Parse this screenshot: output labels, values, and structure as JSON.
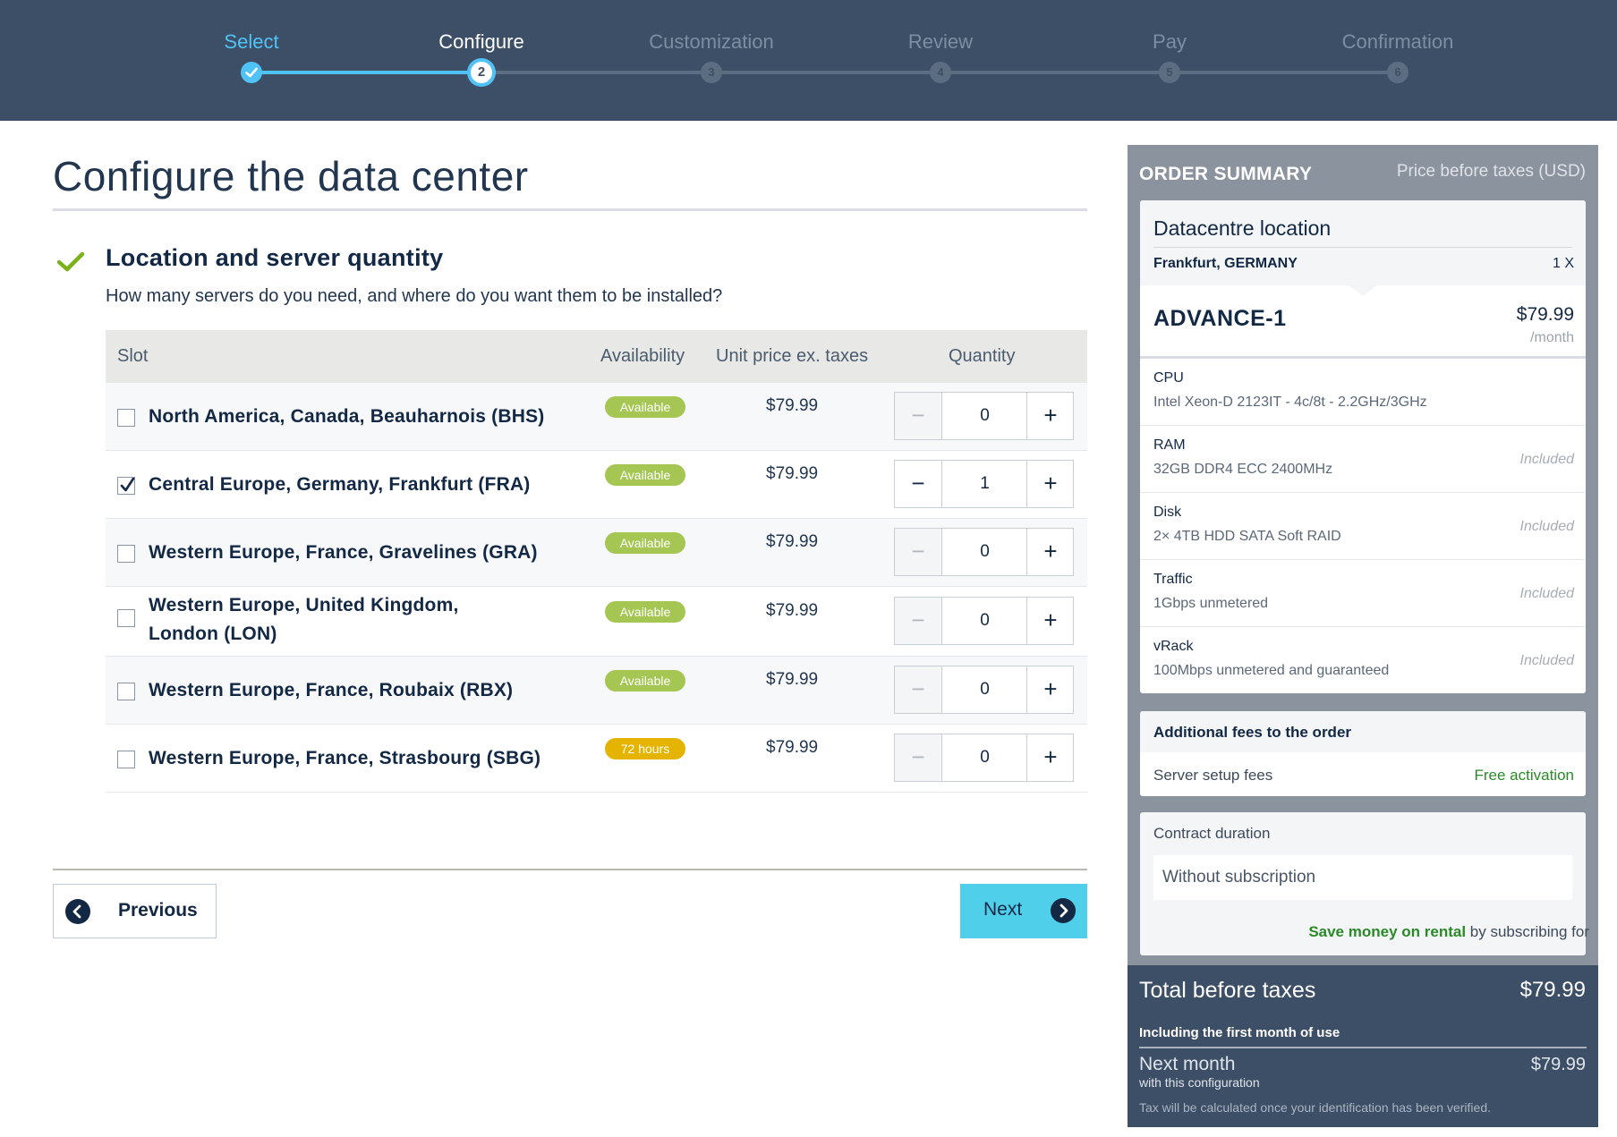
{
  "stepper": {
    "steps": [
      {
        "label": "Select",
        "number": "",
        "state": "done"
      },
      {
        "label": "Configure",
        "number": "2",
        "state": "active"
      },
      {
        "label": "Customization",
        "number": "3",
        "state": "pending"
      },
      {
        "label": "Review",
        "number": "4",
        "state": "pending"
      },
      {
        "label": "Pay",
        "number": "5",
        "state": "pending"
      },
      {
        "label": "Confirmation",
        "number": "6",
        "state": "pending"
      }
    ]
  },
  "main": {
    "title": "Configure the data center",
    "section_title": "Location and server quantity",
    "section_subtitle": "How many servers do you need, and where do you want them to be installed?",
    "table": {
      "headers": {
        "slot": "Slot",
        "availability": "Availability",
        "unit_price": "Unit price ex. taxes",
        "quantity": "Quantity"
      },
      "rows": [
        {
          "name": "North America, Canada, Beauharnois (BHS)",
          "checked": false,
          "availability": "Available",
          "price": "$79.99",
          "qty": "0"
        },
        {
          "name": "Central Europe, Germany, Frankfurt (FRA)",
          "checked": true,
          "availability": "Available",
          "price": "$79.99",
          "qty": "1"
        },
        {
          "name": "Western Europe, France, Gravelines (GRA)",
          "checked": false,
          "availability": "Available",
          "price": "$79.99",
          "qty": "0"
        },
        {
          "name": "Western Europe, United Kingdom, London (LON)",
          "checked": false,
          "availability": "Available",
          "price": "$79.99",
          "qty": "0"
        },
        {
          "name": "Western Europe, France, Roubaix (RBX)",
          "checked": false,
          "availability": "Available",
          "price": "$79.99",
          "qty": "0"
        },
        {
          "name": "Western Europe, France, Strasbourg (SBG)",
          "checked": false,
          "availability": "72 hours",
          "price": "$79.99",
          "qty": "0"
        }
      ]
    },
    "buttons": {
      "previous": "Previous",
      "next": "Next"
    }
  },
  "summary": {
    "title": "ORDER SUMMARY",
    "price_note": "Price before taxes (USD)",
    "datacentre": {
      "title": "Datacentre location",
      "location": "Frankfurt, GERMANY",
      "quantity": "1 X"
    },
    "product": {
      "name": "ADVANCE-1",
      "price": "$79.99",
      "period": "/month"
    },
    "specs": [
      {
        "key": "CPU",
        "value": "Intel Xeon-D 2123IT - 4c/8t - 2.2GHz/3GHz",
        "price": ""
      },
      {
        "key": "RAM",
        "value": "32GB DDR4 ECC 2400MHz",
        "price": "Included"
      },
      {
        "key": "Disk",
        "value": "2× 4TB HDD SATA Soft RAID",
        "price": "Included"
      },
      {
        "key": "Traffic",
        "value": "1Gbps unmetered",
        "price": "Included"
      },
      {
        "key": "vRack",
        "value": "100Mbps unmetered and guaranteed",
        "price": "Included"
      }
    ],
    "fees": {
      "title": "Additional fees to the order",
      "label": "Server setup fees",
      "value": "Free activation"
    },
    "contract": {
      "label": "Contract duration",
      "selected": "Without subscription",
      "promo_highlight": "Save money on rental",
      "promo_rest": " by subscribing for"
    },
    "totals": {
      "title": "Total before taxes",
      "value": "$79.99",
      "subtitle": "Including the first month of use",
      "next_month_title": "Next month",
      "next_month_sub": "with this configuration",
      "next_month_value": "$79.99",
      "tax_note": "Tax will be calculated once your identification has been verified."
    }
  },
  "colors": {
    "header_bg": "#3d4f67",
    "accent": "#4fc3f7",
    "next_button": "#4fcfe9",
    "available_badge": "#a6c653",
    "hours_badge": "#e5b400",
    "success_green": "#2a8a28"
  }
}
